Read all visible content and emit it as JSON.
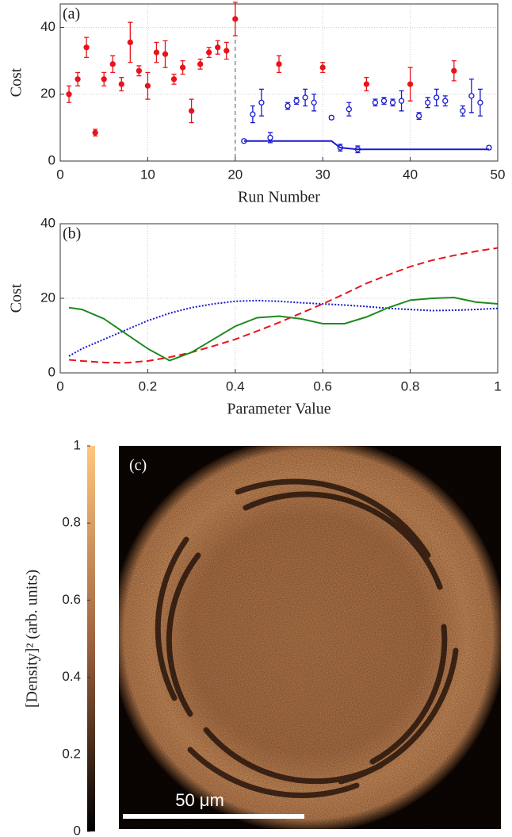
{
  "chart_data": [
    {
      "type": "scatter",
      "title": "(a)",
      "xlabel": "Run Number",
      "ylabel": "Cost",
      "xlim": [
        0,
        50
      ],
      "xticks": [
        0,
        10,
        20,
        30,
        40,
        50
      ],
      "ylim": [
        0,
        47
      ],
      "yticks": [
        0,
        20,
        40
      ],
      "grid": true,
      "vline": 20,
      "series": [
        {
          "color": "#e8141b",
          "marker": "filled",
          "x": [
            1,
            2,
            3,
            4,
            5,
            6,
            7,
            8,
            9,
            10,
            11,
            12,
            13,
            14,
            15,
            16,
            17,
            18,
            19,
            20,
            25,
            30,
            35,
            40,
            45
          ],
          "values": [
            20,
            24.5,
            34,
            8.5,
            24.5,
            29,
            23,
            35.5,
            27,
            22.5,
            32.5,
            32,
            24.5,
            28,
            15,
            29,
            32.5,
            34,
            33,
            42.5,
            29,
            28,
            23,
            23,
            27
          ],
          "errors": [
            2.5,
            2,
            3,
            1,
            2,
            2.5,
            2,
            6,
            1.5,
            4,
            3,
            4,
            1.5,
            2,
            3.5,
            1.5,
            1.5,
            2,
            2.5,
            5,
            2.5,
            1.5,
            2,
            5,
            3
          ]
        },
        {
          "color": "#1a1ad0",
          "marker": "open",
          "x": [
            21,
            22,
            23,
            24,
            26,
            27,
            28,
            29,
            31,
            32,
            33,
            34,
            36,
            37,
            38,
            39,
            41,
            42,
            43,
            44,
            46,
            47,
            48,
            49
          ],
          "values": [
            6,
            14,
            17.5,
            7,
            16.5,
            18,
            19,
            17.5,
            13,
            4,
            15.5,
            3.5,
            17.5,
            18,
            17.5,
            18,
            13.5,
            17.5,
            19,
            18,
            15,
            19.5,
            17.5,
            4
          ],
          "errors": [
            0.5,
            2.5,
            4,
            1.5,
            1,
            1,
            2.5,
            2.5,
            0.5,
            1,
            2,
            1,
            1,
            1,
            1,
            3,
            1,
            1.5,
            2.5,
            1.5,
            1.5,
            5,
            4,
            0.5
          ]
        },
        {
          "color": "#1a1ad0",
          "line": "solid",
          "x": [
            21,
            31,
            32,
            34,
            49
          ],
          "values": [
            6,
            6,
            4,
            3.5,
            3.5
          ]
        }
      ]
    },
    {
      "type": "line",
      "title": "(b)",
      "xlabel": "Parameter Value",
      "ylabel": "Cost",
      "xlim": [
        0,
        1
      ],
      "xticks": [
        0,
        0.2,
        0.4,
        0.6,
        0.8,
        1
      ],
      "ylim": [
        0,
        40
      ],
      "yticks": [
        0,
        20,
        40
      ],
      "grid": true,
      "x": [
        0.02,
        0.05,
        0.1,
        0.15,
        0.2,
        0.25,
        0.3,
        0.35,
        0.4,
        0.45,
        0.5,
        0.55,
        0.6,
        0.65,
        0.7,
        0.75,
        0.8,
        0.85,
        0.9,
        0.95,
        1
      ],
      "series": [
        {
          "color": "#e8141b",
          "line": "dashed",
          "values": [
            3.5,
            3.2,
            2.8,
            2.7,
            3.2,
            4.2,
            5.5,
            7.2,
            9,
            11.2,
            13.5,
            16,
            18.5,
            21.2,
            24,
            26.3,
            28.5,
            30.2,
            31.5,
            32.6,
            33.5
          ]
        },
        {
          "color": "#1a1ad0",
          "line": "dotted",
          "values": [
            4.5,
            6.5,
            9,
            11.5,
            14,
            16,
            17.5,
            18.5,
            19.2,
            19.4,
            19.2,
            18.8,
            18.5,
            18.2,
            17.8,
            17.3,
            17,
            16.7,
            16.8,
            17,
            17.3
          ]
        },
        {
          "color": "#1e8a1e",
          "line": "solid",
          "values": [
            17.5,
            17,
            14.5,
            10.5,
            6.5,
            3.3,
            5.5,
            9,
            12.5,
            14.8,
            15.2,
            14.5,
            13.2,
            13.2,
            15,
            17.5,
            19.5,
            20,
            20.2,
            19,
            18.5
          ]
        }
      ]
    },
    {
      "type": "image",
      "title": "(c)",
      "scalebar": "50 μm",
      "colorbar": {
        "label": "[Density]² (arb. units)",
        "clim": [
          0,
          1
        ],
        "ticks": [
          0,
          0.2,
          0.4,
          0.6,
          0.8,
          1
        ]
      }
    }
  ]
}
